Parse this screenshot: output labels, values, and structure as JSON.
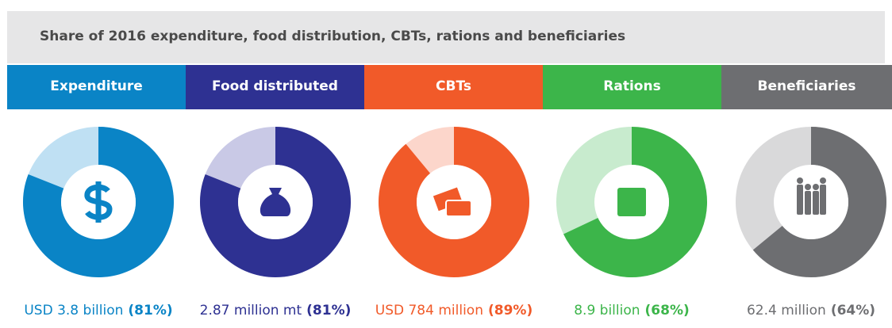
{
  "title": "Share of 2016 expenditure, food distribution, CBTs, rations and beneficiaries",
  "chart_data": [
    {
      "type": "pie",
      "title": "Expenditure",
      "color": "#0a84c6",
      "light_color": "#bfe0f3",
      "values": [
        81
      ],
      "value_labels": [
        "(81%)"
      ],
      "caption": "USD 3.8 billion"
    },
    {
      "type": "pie",
      "title": "Food distributed",
      "color": "#2e3192",
      "light_color": "#c9c9e6",
      "values": [
        81
      ],
      "value_labels": [
        "(81%)"
      ],
      "caption": "2.87 million mt"
    },
    {
      "type": "pie",
      "title": "CBTs",
      "color": "#f15a29",
      "light_color": "#fcd6cb",
      "values": [
        89
      ],
      "value_labels": [
        "(89%)"
      ],
      "caption": "USD 784 million"
    },
    {
      "type": "pie",
      "title": "Rations",
      "color": "#3cb54a",
      "light_color": "#c8ebce",
      "values": [
        68
      ],
      "value_labels": [
        "(68%)"
      ],
      "caption": "8.9 billion"
    },
    {
      "type": "pie",
      "title": "Beneficiaries",
      "color": "#6d6e71",
      "light_color": "#d9d9da",
      "values": [
        64
      ],
      "value_labels": [
        "(64%)"
      ],
      "caption": "62.4 million"
    }
  ]
}
